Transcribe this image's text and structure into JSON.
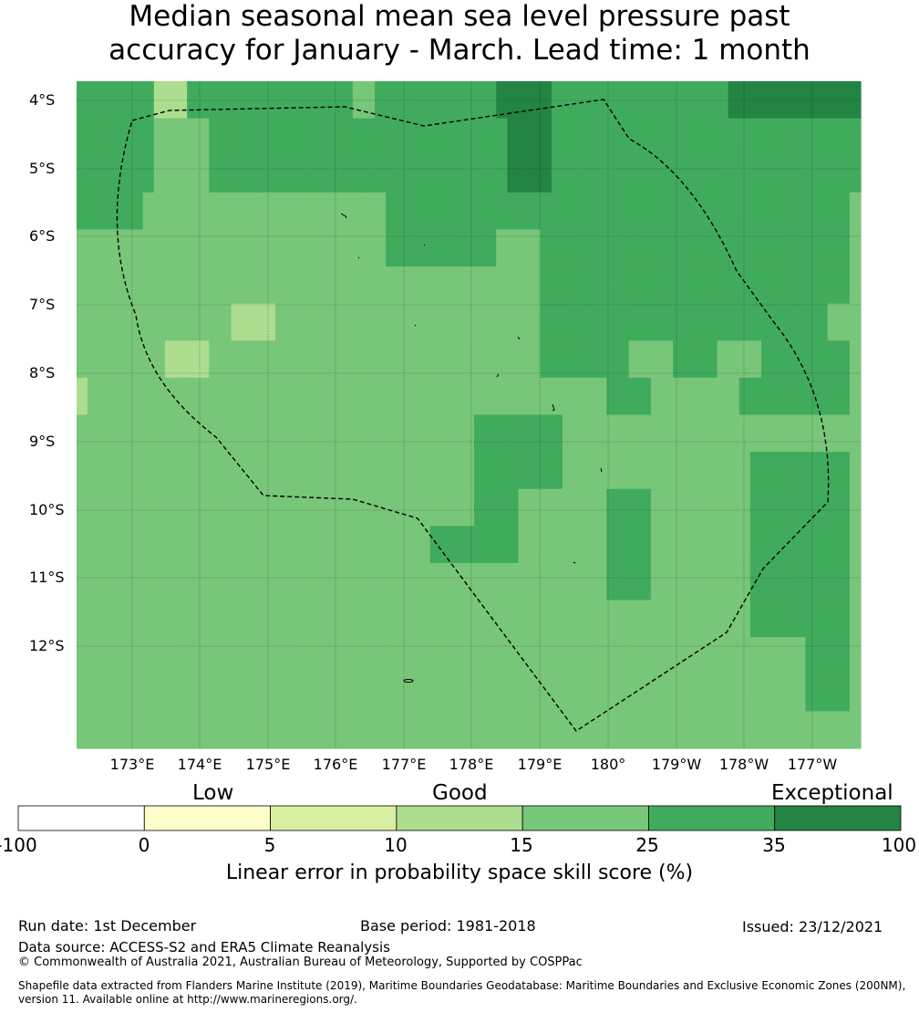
{
  "title": {
    "line1": "Median seasonal mean sea level pressure past",
    "line2": "accuracy for January - March. Lead time: 1 month"
  },
  "lat_labels": [
    "4°S",
    "5°S",
    "6°S",
    "7°S",
    "8°S",
    "9°S",
    "10°S",
    "11°S",
    "12°S"
  ],
  "lon_labels": [
    "173°E",
    "174°E",
    "175°E",
    "176°E",
    "177°E",
    "178°E",
    "179°E",
    "180°",
    "179°W",
    "178°W",
    "177°W"
  ],
  "colorbar": {
    "categories": [
      "Low",
      "Good",
      "Exceptional"
    ],
    "ticks": [
      "-100",
      "0",
      "5",
      "10",
      "15",
      "25",
      "35",
      "100"
    ],
    "colors": [
      "#ffffff",
      "#fefecc",
      "#d9f0a3",
      "#addd8e",
      "#78c679",
      "#41ab5d",
      "#238443"
    ],
    "label": "Linear error in probability space skill score (%)"
  },
  "footer": {
    "run_date": "Run date: 1st December",
    "base_period": "Base period: 1981-2018",
    "issued": "Issued: 23/12/2021",
    "data_source": "Data source: ACCESS-S2 and ERA5 Climate Reanalysis",
    "copyright": "© Commonwealth of Australia 2021, Australian Bureau of Meteorology, Supported by COSPPac",
    "shapefile": "Shapefile data extracted from Flanders Marine Institute (2019), Maritime Boundaries Geodatabase: Maritime Boundaries and Exclusive Economic Zones (200NM), version 11. Available online at http://www.marineregions.org/."
  },
  "map": {
    "grid_colors": {
      "a": "#78c679",
      "b": "#41ab5d",
      "c": "#238443",
      "d": "#addd8e"
    },
    "grid": [
      "bbbbbbbdddbbbbbbbbbbbbbbbaabbbbbbbbbbbcccccbbbbbbbbbbbbbbbbcccccccccccc",
      "bbbbbbbaaaaabbbbbbbbbbbbbbbbbbbbbbbbbbbccccbbbbbbbbbbbbbbbbbbbbbbbbbbbb",
      "bbbbbbbaaaaabbbbbbbbbbbbbbbbbbbbbbbbbbbccccbbbbbbbbbbbbbbbbbbbbbbbbbbbb",
      "bbbbbbaaaaaaaaaaaaaaaaaaaaaabbbbbbbbbbbbbbbbbbbbbbbbbbbbbbbbbbbbbbbbbb",
      "aaaaaaaaaaaaaaaaaaaaaaaaaaaabbbbbbbbbbaaaabbbbbbbbbbbbbbbbbbbbbbbbbbbb",
      "aaaaaaaaaaaaaaaaaaaaaaaaaaaaaaaaaaaaaaaaaabbbbbbbbbbbbbbbbbbbbbbbbbbbb",
      "aaaaaaaaaaaaaaddddaaaaaaaaaaaaaaaaaaaaaaaabbbbbbbbbbbbbbbbbbbbbbbbbbaa",
      "aaaaaaaaddddaaaaaaaaaaaaaaaaaaaaaaaaaaaaaabbbbbbbbaaaabbbbaaaabbbbbbbb",
      "daaaaaaaaaaaaaaaaaaaaaaaaaaaaaaaaaaaaaaaaaaaaaaabbbbaaaaaaaabbbbbbbbbb",
      "aaaaaaaaaaaaaaaaaaaaaaaaaaaaaaaaaaaabbbbbbbbaaaaaaaaaaaaaaaaaaaaaaaaaa",
      "aaaaaaaaaaaaaaaaaaaaaaaaaaaaaaaaaaaabbbbbbbbaaaaaaaaaaaaaaaaabbbbbbbbb",
      "aaaaaaaaaaaaaaaaaaaaaaaaaaaaaaaaaaaabbbbaaaaaaaabbbbaaaaaaaaabbbbbbbbb",
      "aaaaaaaaaaaaaaaaaaaaaaaaaaaaaaaabbbbbbbbaaaaaaaabbbbaaaaaaaaabbbbbbbbb",
      "aaaaaaaaaaaaaaaaaaaaaaaaaaaaaaaaaaaaaaaaaaaaaaaabbbbaaaaaaaaabbbbbbbbb",
      "aaaaaaaaaaaaaaaaaaaaaaaaaaaaaaaaaaaaaaaaaaaaaaaaaaaaaaaaaaaaabbbbbbbbb",
      "aaaaaaaaaaaaaaaaaaaaaaaaaaaaaaaaaaaaaaaaaaaaaaaaaaaaaaaaaaaaaaaaaabbbb",
      "aaaaaaaaaaaaaaaaaaaaaaaaaaaaaaaaaaaaaaaaaaaaaaaaaaaaaaaaaaaaaaaaaabbbb",
      "aaaaaaaaaaaaaaaaaaaaaaaaaaaaaaaaaaaaaaaaaaaaaaaaaaaaaaaaaaaaaaaaaaaaaa"
    ]
  }
}
